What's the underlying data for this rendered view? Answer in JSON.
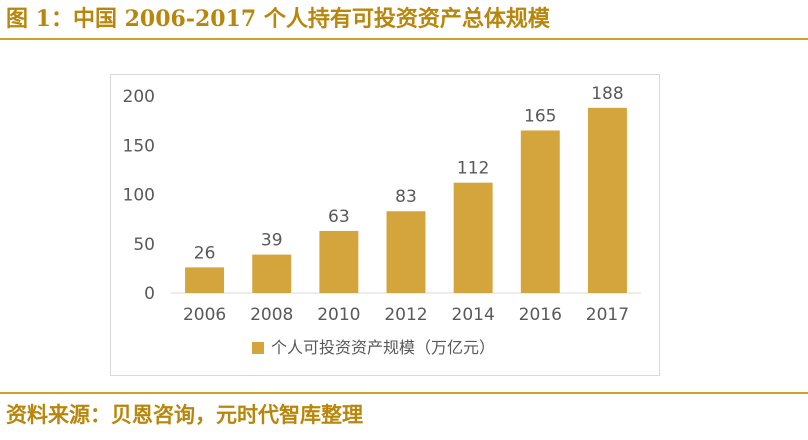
{
  "figure": {
    "title": "图 1：中国 2006-2017 个人持有可投资资产总体规模",
    "source": "资料来源：贝恩咨询，元时代智库整理"
  },
  "colors": {
    "accent": "#c9a227",
    "bar": "#d4a53c",
    "title_text": "#b8860b"
  },
  "chart_data": {
    "type": "bar",
    "categories": [
      "2006",
      "2008",
      "2010",
      "2012",
      "2014",
      "2016",
      "2017"
    ],
    "series": [
      {
        "name": "个人可投资资产规模（万亿元）",
        "values": [
          26,
          39,
          63,
          83,
          112,
          165,
          188
        ]
      }
    ],
    "ylim": [
      0,
      200
    ],
    "yticks": [
      0,
      50,
      100,
      150,
      200
    ],
    "grid": false,
    "legend": "bottom",
    "data_labels": true
  }
}
